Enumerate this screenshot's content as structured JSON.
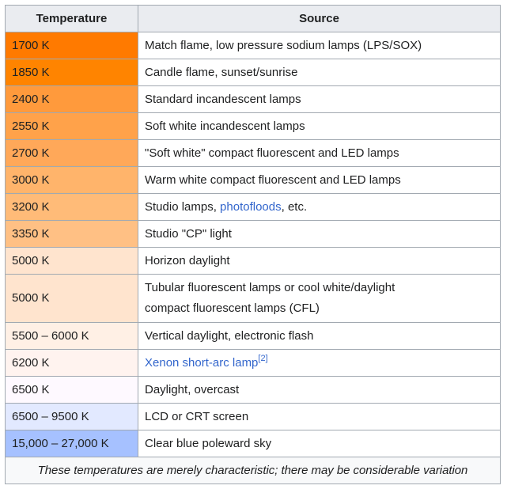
{
  "table": {
    "headers": {
      "temperature": "Temperature",
      "source": "Source"
    },
    "rows": [
      {
        "temperature": "1700 K",
        "source": "Match flame, low pressure sodium lamps (LPS/SOX)",
        "color": "#ff7a00"
      },
      {
        "temperature": "1850 K",
        "source": "Candle flame, sunset/sunrise",
        "color": "#ff8400"
      },
      {
        "temperature": "2400 K",
        "source": "Standard incandescent lamps",
        "color": "#ff9a3c"
      },
      {
        "temperature": "2550 K",
        "source": "Soft white incandescent lamps",
        "color": "#ffa24a"
      },
      {
        "temperature": "2700 K",
        "source": "\"Soft white\" compact fluorescent and LED lamps",
        "color": "#ffa859"
      },
      {
        "temperature": "3000 K",
        "source": "Warm white compact fluorescent and LED lamps",
        "color": "#ffb46b"
      },
      {
        "temperature": "3200 K",
        "source_before": "Studio lamps, ",
        "source_link": "photofloods",
        "source_after": ", etc.",
        "color": "#ffbb78"
      },
      {
        "temperature": "3350 K",
        "source": "Studio \"CP\" light",
        "color": "#ffc084"
      },
      {
        "temperature": "5000 K",
        "source": "Horizon daylight",
        "color": "#ffe4ce"
      },
      {
        "temperature": "5000 K",
        "source_line1": "Tubular fluorescent lamps or cool white/daylight",
        "source_line2": "compact fluorescent lamps (CFL)",
        "color": "#ffe4ce"
      },
      {
        "temperature": "5500 – 6000 K",
        "source": "Vertical daylight, electronic flash",
        "color": "#fff0e5"
      },
      {
        "temperature": "6200 K",
        "source_link": "Xenon short-arc lamp",
        "source_ref": "[2]",
        "color": "#fff3ef"
      },
      {
        "temperature": "6500 K",
        "source": "Daylight, overcast",
        "color": "#fef9ff"
      },
      {
        "temperature": "6500 – 9500 K",
        "source": "LCD or CRT screen",
        "color": "#e2e9ff"
      },
      {
        "temperature": "15,000 – 27,000 K",
        "source": "Clear blue poleward sky",
        "color": "#a6c1ff"
      }
    ],
    "footnote": "These temperatures are merely characteristic; there may be considerable variation"
  }
}
